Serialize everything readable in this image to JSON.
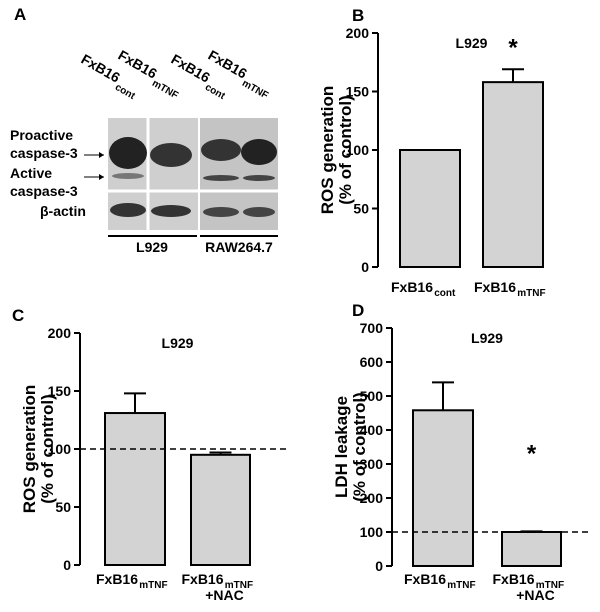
{
  "blot": {
    "panel_label": "A",
    "lanes": [
      {
        "name": "FxB16",
        "sub": "cont"
      },
      {
        "name": "FxB16",
        "sub": "mTNF"
      },
      {
        "name": "FxB16",
        "sub": "cont"
      },
      {
        "name": "FxB16",
        "sub": "mTNF"
      }
    ],
    "rows": [
      [
        "Proactive",
        "caspase-3"
      ],
      [
        "Active",
        "caspase-3"
      ],
      [
        "β-actin"
      ]
    ],
    "groups": [
      "L929",
      "RAW264.7"
    ]
  },
  "chart_data": [
    {
      "type": "bar",
      "panel_label": "B",
      "title": "L929",
      "ylabel": [
        "ROS generation",
        "(% of control)"
      ],
      "categories": [
        "FxB16",
        "FxB16"
      ],
      "category_subscripts": [
        "cont",
        "mTNF"
      ],
      "values": [
        100,
        158
      ],
      "errors": [
        null,
        11
      ],
      "color": "#d3d3d3",
      "ylim": [
        0,
        200
      ],
      "yticks": [
        0,
        50,
        100,
        150,
        200
      ],
      "annotations": [
        {
          "text": "*",
          "category": 1
        }
      ]
    },
    {
      "type": "bar",
      "panel_label": "C",
      "title": "L929",
      "ylabel": [
        "ROS generation",
        "(% of control)"
      ],
      "categories": [
        "FxB16",
        "FxB16"
      ],
      "category_subscripts": [
        "mTNF",
        "mTNF"
      ],
      "category_suffixes": [
        null,
        "+NAC"
      ],
      "values": [
        131,
        95
      ],
      "errors": [
        17,
        2
      ],
      "color": "#d3d3d3",
      "reference_line": 100,
      "ylim": [
        0,
        200
      ],
      "yticks": [
        0,
        50,
        100,
        150,
        200
      ]
    },
    {
      "type": "bar",
      "panel_label": "D",
      "title": "L929",
      "ylabel": [
        "LDH leakage",
        "(% of control)"
      ],
      "categories": [
        "FxB16",
        "FxB16"
      ],
      "category_subscripts": [
        "mTNF",
        "mTNF"
      ],
      "category_suffixes": [
        null,
        "+NAC"
      ],
      "values": [
        458,
        100
      ],
      "errors": [
        82,
        2
      ],
      "color": "#d3d3d3",
      "reference_line": 100,
      "ylim": [
        0,
        700
      ],
      "yticks": [
        0,
        100,
        200,
        300,
        400,
        500,
        600,
        700
      ],
      "annotations": [
        {
          "text": "*",
          "category": 1
        }
      ]
    }
  ]
}
